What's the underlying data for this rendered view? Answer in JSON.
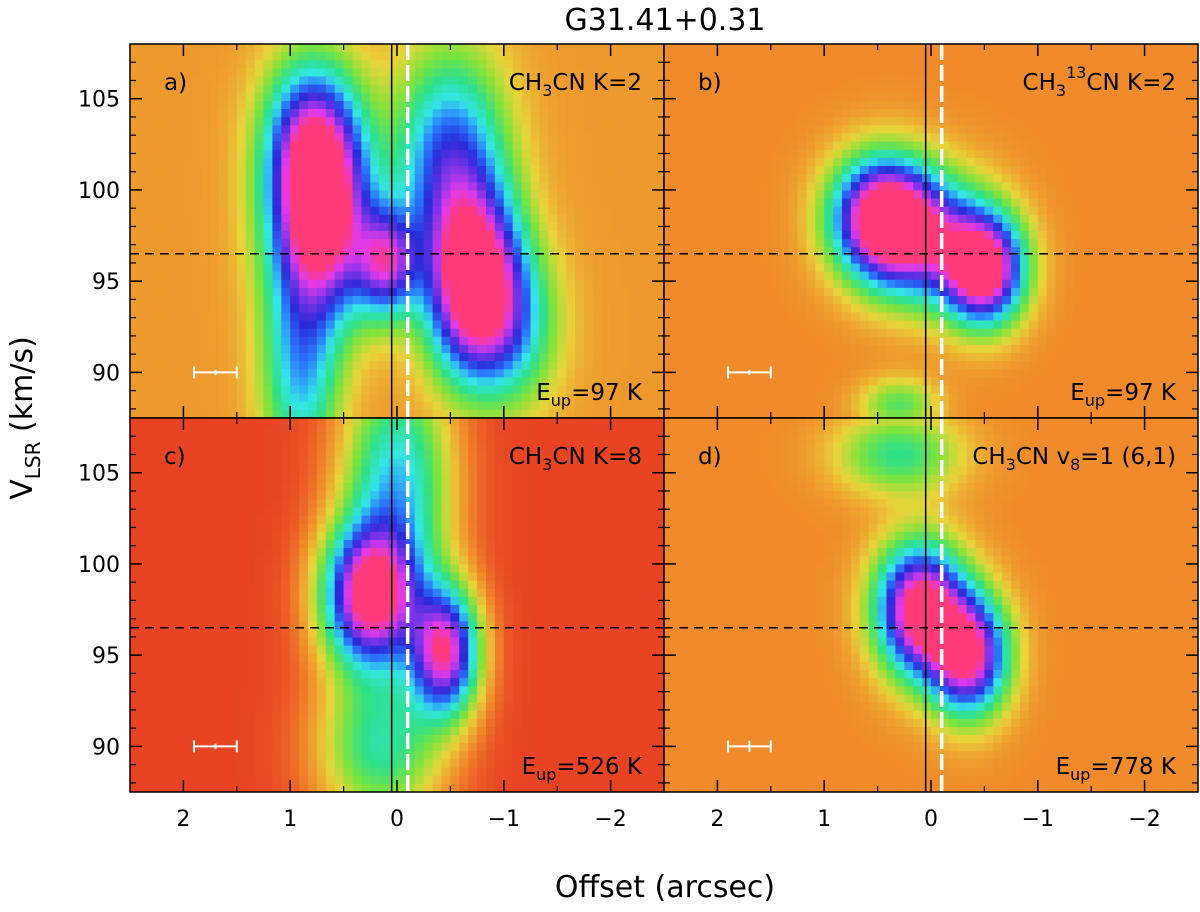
{
  "figure": {
    "title": "G31.41+0.31",
    "xlabel": "Offset (arcsec)",
    "ylabel_main": "V",
    "ylabel_sub": "LSR",
    "ylabel_unit": " (km/s)"
  },
  "chart_data": {
    "type": "heatmap",
    "title": "G31.41+0.31",
    "xlabel": "Offset (arcsec)",
    "ylabel": "VLSR (km/s)",
    "xlim": [
      2.5,
      -2.5
    ],
    "ylim": [
      87.5,
      108
    ],
    "x_ticks": [
      2,
      1,
      0,
      -1,
      -2
    ],
    "x_tick_labels": [
      "2",
      "1",
      "0",
      "−1",
      "−2"
    ],
    "y_ticks": [
      90,
      95,
      100,
      105
    ],
    "y_tick_labels": [
      "90",
      "95",
      "100",
      "105"
    ],
    "reference_lines": {
      "systemic_velocity": 96.5,
      "solid_offset": 0.05,
      "white_dashed_offset": -0.1
    },
    "colormap": [
      "#e63222",
      "#f08a2a",
      "#e8d53a",
      "#7fe33c",
      "#2ee08a",
      "#34e6e6",
      "#2a7bff",
      "#2a2ad8",
      "#7c34e8",
      "#e23ae8",
      "#ff3a78"
    ],
    "panels": [
      {
        "label": "a)",
        "line": "CH3CN",
        "line_pre": "CH",
        "line_sub": "3",
        "line_sup": "",
        "line_post": "CN K=2",
        "eup_label": "E",
        "eup_sub": "up",
        "eup_value": "=97 K",
        "background": 0.12,
        "blobs": [
          {
            "x": 0.72,
            "y": 98.6,
            "sx": 0.32,
            "sy": 3.8,
            "amp": 1.0,
            "rot": 0.5
          },
          {
            "x": -0.72,
            "y": 94.8,
            "sx": 0.3,
            "sy": 3.4,
            "amp": 1.0,
            "rot": 0.1
          },
          {
            "x": 0.1,
            "y": 96.0,
            "sx": 0.2,
            "sy": 2.0,
            "amp": 0.65,
            "rot": 0
          },
          {
            "x": -0.5,
            "y": 101.5,
            "sx": 0.35,
            "sy": 4.0,
            "amp": 0.55,
            "rot": 0.2
          },
          {
            "x": 0.8,
            "y": 103.0,
            "sx": 0.3,
            "sy": 3.0,
            "amp": 0.5,
            "rot": -0.3
          },
          {
            "x": 0.9,
            "y": 90.0,
            "sx": 0.25,
            "sy": 4.0,
            "amp": 0.4,
            "rot": 0
          },
          {
            "x": -1.1,
            "y": 92.5,
            "sx": 0.3,
            "sy": 3.0,
            "amp": 0.3,
            "rot": 0
          }
        ],
        "errorbar": {
          "x": 1.7,
          "y": 90,
          "xerr": 0.2,
          "yerr": 0.15
        }
      },
      {
        "label": "b)",
        "line": "CH3 13CN",
        "line_pre": "CH",
        "line_sub": "3",
        "line_sup": "13",
        "line_post": "CN K=2",
        "eup_label": "E",
        "eup_sub": "up",
        "eup_value": "=97 K",
        "background": 0.1,
        "blobs": [
          {
            "x": 0.45,
            "y": 98.5,
            "sx": 0.32,
            "sy": 2.2,
            "amp": 1.0,
            "rot": 0.4
          },
          {
            "x": -0.5,
            "y": 95.6,
            "sx": 0.25,
            "sy": 2.0,
            "amp": 0.95,
            "rot": 0
          },
          {
            "x": 0.0,
            "y": 97.2,
            "sx": 0.4,
            "sy": 2.4,
            "amp": 0.6,
            "rot": 0.3
          },
          {
            "x": 0.3,
            "y": 88.2,
            "sx": 0.25,
            "sy": 1.0,
            "amp": 0.25,
            "rot": 0
          }
        ],
        "errorbar": {
          "x": 1.7,
          "y": 90,
          "xerr": 0.2,
          "yerr": 0.15
        }
      },
      {
        "label": "c)",
        "line": "CH3CN",
        "line_pre": "CH",
        "line_sub": "3",
        "line_sup": "",
        "line_post": "CN K=8",
        "eup_label": "E",
        "eup_sub": "up",
        "eup_value": "=526 K",
        "background": 0.02,
        "blobs": [
          {
            "x": 0.25,
            "y": 98.2,
            "sx": 0.3,
            "sy": 2.6,
            "amp": 1.0,
            "rot": 0.2
          },
          {
            "x": -0.45,
            "y": 95.2,
            "sx": 0.22,
            "sy": 2.4,
            "amp": 0.9,
            "rot": 0
          },
          {
            "x": 0.0,
            "y": 104.5,
            "sx": 0.35,
            "sy": 4.5,
            "amp": 0.5,
            "rot": 0
          },
          {
            "x": 0.15,
            "y": 90.0,
            "sx": 0.4,
            "sy": 3.0,
            "amp": 0.4,
            "rot": 0
          }
        ],
        "errorbar": {
          "x": 1.7,
          "y": 90,
          "xerr": 0.2,
          "yerr": 0.15
        }
      },
      {
        "label": "d)",
        "line": "CH3CN v8=1 (6,1)",
        "line_pre": "CH",
        "line_sub": "3",
        "line_sup": "",
        "line_post": "CN v",
        "line_sub2": "8",
        "line_post2": "=1 (6,1)",
        "eup_label": "E",
        "eup_sub": "up",
        "eup_value": "=778 K",
        "background": 0.1,
        "blobs": [
          {
            "x": 0.1,
            "y": 97.5,
            "sx": 0.28,
            "sy": 2.4,
            "amp": 1.0,
            "rot": 0.3
          },
          {
            "x": -0.35,
            "y": 95.0,
            "sx": 0.25,
            "sy": 2.2,
            "amp": 0.9,
            "rot": 0
          },
          {
            "x": 0.3,
            "y": 106.0,
            "sx": 0.4,
            "sy": 1.5,
            "amp": 0.3,
            "rot": 0
          }
        ],
        "errorbar": {
          "x": 1.7,
          "y": 90,
          "xerr": 0.2,
          "yerr": 0.3
        }
      }
    ]
  }
}
